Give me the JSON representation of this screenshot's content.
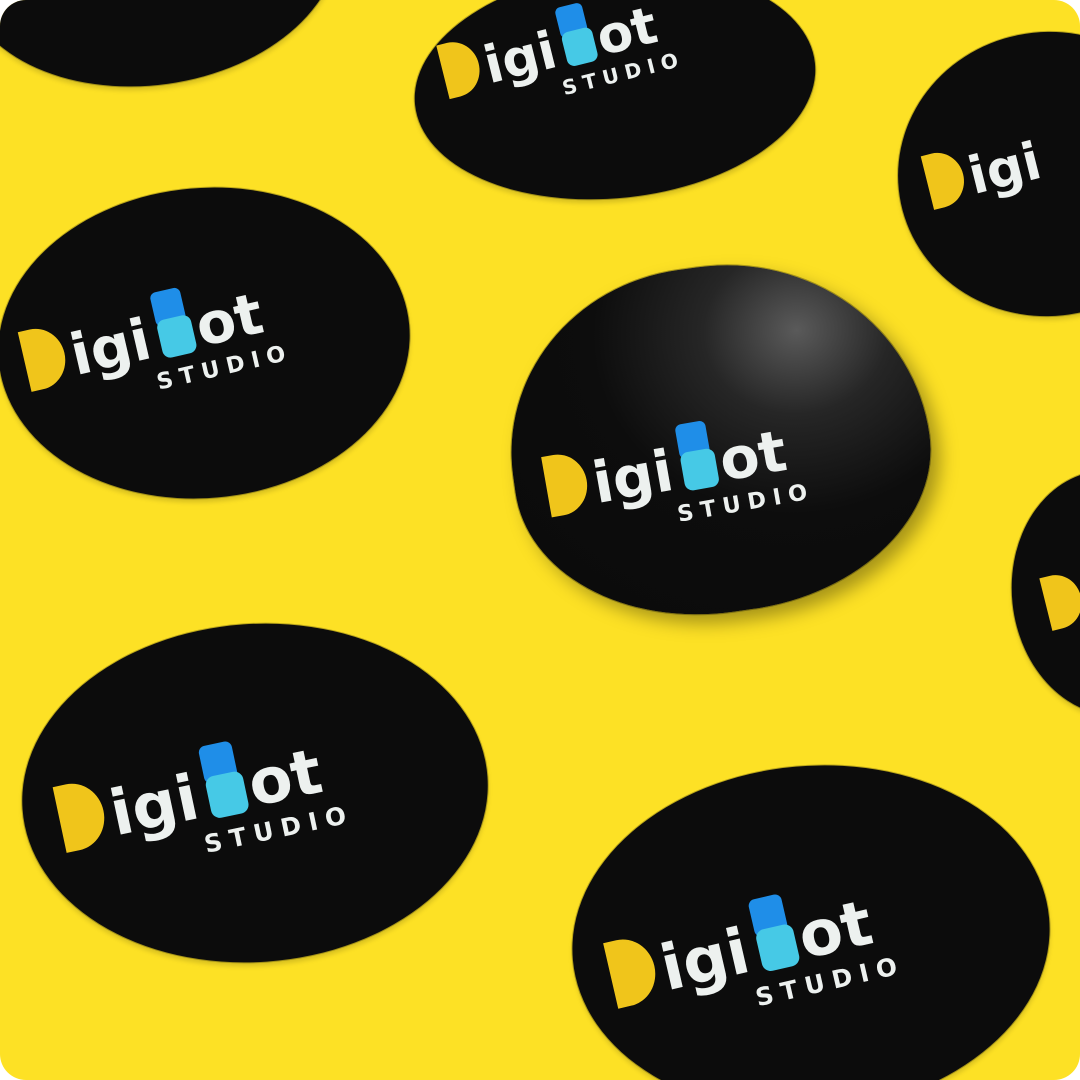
{
  "scene": {
    "background_color": "#fde125",
    "sticker_color": "#0c0c0c"
  },
  "brand": {
    "name_part_1": "igi",
    "name_b": "B",
    "name_part_2": "ot",
    "subtitle": "STUDIO",
    "d_mark_color": "#f0c51b",
    "b_top_color": "#1f8ee8",
    "b_bottom_color": "#46c9e6",
    "text_color": "#edf1ef"
  },
  "stickers": [
    {
      "name": "sticker-top-left-partial",
      "peeling": false
    },
    {
      "name": "sticker-top-center",
      "peeling": false
    },
    {
      "name": "sticker-top-right-partial",
      "peeling": false
    },
    {
      "name": "sticker-middle-left",
      "peeling": false
    },
    {
      "name": "sticker-center-peeling",
      "peeling": true
    },
    {
      "name": "sticker-right-edge-partial",
      "peeling": false
    },
    {
      "name": "sticker-bottom-left",
      "peeling": false
    },
    {
      "name": "sticker-bottom-right",
      "peeling": false
    }
  ]
}
